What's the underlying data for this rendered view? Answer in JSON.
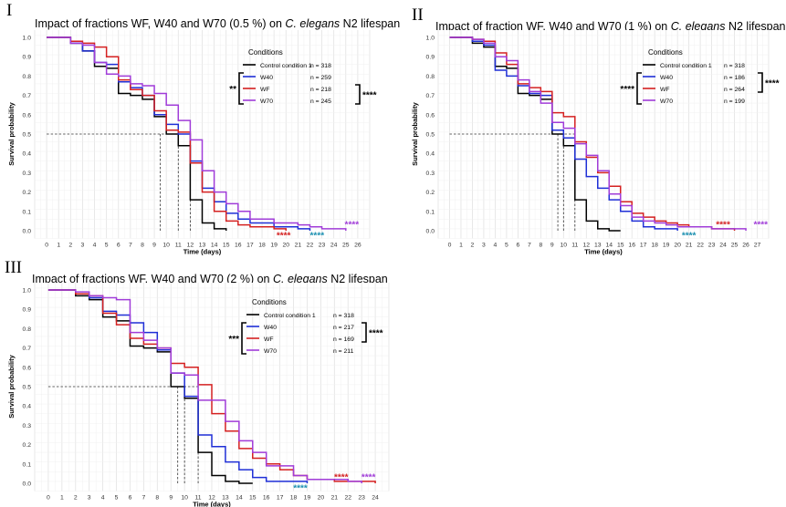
{
  "chart_data": [
    {
      "type": "line",
      "step": true,
      "panel_label": "I",
      "title_parts": [
        "Impact of fractions WF, W40 and W70 (0.5 %) on ",
        "C. elegans",
        " N2 lifespan"
      ],
      "xlabel": "Time (days)",
      "ylabel": "Survival probability",
      "xlim": [
        -1,
        27
      ],
      "ylim": [
        0,
        1
      ],
      "xticks": [
        0,
        1,
        2,
        3,
        4,
        5,
        6,
        7,
        8,
        9,
        10,
        11,
        12,
        13,
        14,
        15,
        16,
        17,
        18,
        19,
        20,
        21,
        22,
        23,
        24,
        25,
        26
      ],
      "yticks": [
        0.0,
        0.1,
        0.2,
        0.3,
        0.4,
        0.5,
        0.6,
        0.7,
        0.8,
        0.9,
        1.0
      ],
      "grid": true,
      "legend_title": "Conditions",
      "legend_position": "top-right",
      "median_line": 0.5,
      "medians": [
        9.5,
        11,
        12
      ],
      "series": [
        {
          "name": "Control condition 1",
          "n": "n = 318",
          "color": "#000000",
          "x": [
            0,
            2,
            3,
            4,
            5,
            6,
            7,
            8,
            9,
            10,
            11,
            12,
            13,
            14,
            15
          ],
          "y": [
            1.0,
            0.97,
            0.93,
            0.85,
            0.84,
            0.71,
            0.7,
            0.68,
            0.59,
            0.5,
            0.44,
            0.16,
            0.04,
            0.01,
            0.0
          ]
        },
        {
          "name": "W40",
          "n": "n = 259",
          "color": "#1f2fd6",
          "x": [
            0,
            2,
            3,
            4,
            5,
            6,
            7,
            8,
            9,
            10,
            11,
            12,
            13,
            14,
            15,
            16,
            17,
            19,
            21,
            22
          ],
          "y": [
            1.0,
            0.97,
            0.93,
            0.87,
            0.86,
            0.77,
            0.74,
            0.7,
            0.6,
            0.55,
            0.5,
            0.36,
            0.22,
            0.15,
            0.09,
            0.06,
            0.04,
            0.02,
            0.01,
            0.0
          ]
        },
        {
          "name": "WF",
          "n": "n = 218",
          "color": "#d42020",
          "x": [
            0,
            2,
            3,
            4,
            5,
            6,
            7,
            8,
            9,
            10,
            11,
            12,
            13,
            14,
            15,
            16,
            17,
            19,
            20
          ],
          "y": [
            1.0,
            0.98,
            0.97,
            0.95,
            0.9,
            0.78,
            0.73,
            0.7,
            0.62,
            0.52,
            0.51,
            0.35,
            0.2,
            0.1,
            0.05,
            0.03,
            0.02,
            0.01,
            0.0
          ]
        },
        {
          "name": "W70",
          "n": "n = 245",
          "color": "#a03cd8",
          "x": [
            0,
            2,
            3,
            4,
            5,
            6,
            7,
            8,
            9,
            10,
            11,
            12,
            13,
            14,
            15,
            16,
            17,
            19,
            21,
            22,
            23,
            24,
            25
          ],
          "y": [
            1.0,
            0.97,
            0.96,
            0.87,
            0.81,
            0.8,
            0.76,
            0.75,
            0.71,
            0.65,
            0.57,
            0.47,
            0.31,
            0.2,
            0.14,
            0.1,
            0.06,
            0.04,
            0.03,
            0.02,
            0.01,
            0.01,
            0.0
          ]
        }
      ],
      "significance": [
        {
          "text": "**",
          "side": "left",
          "from": 1,
          "to": 3
        },
        {
          "text": "****",
          "side": "right",
          "from": 2,
          "to": 3
        }
      ],
      "end_stars": [
        {
          "text": "****",
          "color": "#d42020",
          "x": 19.8,
          "y": -0.025
        },
        {
          "text": "****",
          "color": "#1a8fb0",
          "x": 22.6,
          "y": -0.025
        },
        {
          "text": "****",
          "color": "#a03cd8",
          "x": 25.5,
          "y": 0.03
        }
      ]
    },
    {
      "type": "line",
      "step": true,
      "panel_label": "II",
      "title_parts": [
        "Impact of fraction WF, W40 and W70 (1 %) on ",
        "C. elegans",
        " N2 lifespan"
      ],
      "xlabel": "Time (days)",
      "ylabel": "Survival probability",
      "xlim": [
        -1,
        28
      ],
      "ylim": [
        0,
        1
      ],
      "xticks": [
        0,
        1,
        2,
        3,
        4,
        5,
        6,
        7,
        8,
        9,
        10,
        11,
        12,
        13,
        14,
        15,
        16,
        17,
        18,
        19,
        20,
        21,
        22,
        23,
        24,
        25,
        26,
        27
      ],
      "yticks": [
        0.0,
        0.1,
        0.2,
        0.3,
        0.4,
        0.5,
        0.6,
        0.7,
        0.8,
        0.9,
        1.0
      ],
      "grid": true,
      "legend_title": "Conditions",
      "legend_position": "top-right",
      "median_line": 0.5,
      "medians": [
        9.5,
        10,
        11
      ],
      "series": [
        {
          "name": "Control condition 1",
          "n": "n = 318",
          "color": "#000000",
          "x": [
            0,
            2,
            3,
            4,
            5,
            6,
            7,
            8,
            9,
            10,
            11,
            12,
            13,
            14,
            15
          ],
          "y": [
            1.0,
            0.97,
            0.95,
            0.85,
            0.84,
            0.71,
            0.7,
            0.68,
            0.5,
            0.44,
            0.16,
            0.05,
            0.01,
            0.0,
            0.0
          ]
        },
        {
          "name": "W40",
          "n": "n = 186",
          "color": "#1f2fd6",
          "x": [
            0,
            2,
            3,
            4,
            5,
            6,
            7,
            8,
            9,
            10,
            11,
            12,
            13,
            14,
            15,
            16,
            17,
            18,
            19,
            20
          ],
          "y": [
            1.0,
            0.98,
            0.96,
            0.83,
            0.8,
            0.75,
            0.71,
            0.7,
            0.52,
            0.48,
            0.37,
            0.28,
            0.22,
            0.16,
            0.1,
            0.05,
            0.02,
            0.01,
            0.01,
            0.0
          ]
        },
        {
          "name": "WF",
          "n": "n = 264",
          "color": "#d42020",
          "x": [
            0,
            2,
            3,
            4,
            5,
            6,
            7,
            8,
            9,
            10,
            11,
            12,
            13,
            14,
            15,
            16,
            17,
            18,
            19,
            20,
            21,
            22,
            23,
            24,
            25
          ],
          "y": [
            1.0,
            0.99,
            0.98,
            0.92,
            0.86,
            0.76,
            0.74,
            0.72,
            0.61,
            0.59,
            0.46,
            0.38,
            0.3,
            0.23,
            0.15,
            0.09,
            0.07,
            0.05,
            0.04,
            0.03,
            0.02,
            0.02,
            0.01,
            0.01,
            0.0
          ]
        },
        {
          "name": "W70",
          "n": "n = 199",
          "color": "#a03cd8",
          "x": [
            0,
            2,
            3,
            4,
            5,
            6,
            7,
            8,
            9,
            10,
            11,
            12,
            13,
            14,
            15,
            16,
            17,
            18,
            19,
            20,
            21,
            22,
            23,
            24,
            25,
            26
          ],
          "y": [
            1.0,
            0.99,
            0.97,
            0.9,
            0.88,
            0.78,
            0.72,
            0.66,
            0.56,
            0.53,
            0.45,
            0.39,
            0.31,
            0.19,
            0.13,
            0.07,
            0.05,
            0.04,
            0.03,
            0.02,
            0.02,
            0.02,
            0.01,
            0.01,
            0.01,
            0.0
          ]
        }
      ],
      "significance": [
        {
          "text": "****",
          "side": "left",
          "from": 1,
          "to": 3
        },
        {
          "text": "****",
          "side": "right",
          "from": 1,
          "to": 2
        }
      ],
      "end_stars": [
        {
          "text": "****",
          "color": "#d42020",
          "x": 24.0,
          "y": 0.03
        },
        {
          "text": "****",
          "color": "#1a8fb0",
          "x": 21.0,
          "y": -0.025
        },
        {
          "text": "****",
          "color": "#a03cd8",
          "x": 27.3,
          "y": 0.03
        }
      ]
    },
    {
      "type": "line",
      "step": true,
      "panel_label": "III",
      "title_parts": [
        "Impact of fractions WF, W40 and W70 (2 %) on ",
        "C. elegans",
        " N2 lifespan"
      ],
      "xlabel": "Time (days)",
      "ylabel": "Survival probability",
      "xlim": [
        -1,
        25
      ],
      "ylim": [
        0,
        1
      ],
      "xticks": [
        0,
        1,
        2,
        3,
        4,
        5,
        6,
        7,
        8,
        9,
        10,
        11,
        12,
        13,
        14,
        15,
        16,
        17,
        18,
        19,
        20,
        21,
        22,
        23,
        24
      ],
      "yticks": [
        0.0,
        0.1,
        0.2,
        0.3,
        0.4,
        0.5,
        0.6,
        0.7,
        0.8,
        0.9,
        1.0
      ],
      "grid": true,
      "legend_title": "Conditions",
      "legend_position": "top-right",
      "median_line": 0.5,
      "medians": [
        9.5,
        10,
        11
      ],
      "series": [
        {
          "name": "Control condition 1",
          "n": "n = 318",
          "color": "#000000",
          "x": [
            0,
            2,
            3,
            4,
            5,
            6,
            7,
            8,
            9,
            10,
            11,
            12,
            13,
            14,
            15
          ],
          "y": [
            1.0,
            0.97,
            0.95,
            0.86,
            0.84,
            0.71,
            0.7,
            0.68,
            0.5,
            0.44,
            0.16,
            0.04,
            0.01,
            0.0,
            0.0
          ]
        },
        {
          "name": "W40",
          "n": "n = 217",
          "color": "#1f2fd6",
          "x": [
            0,
            2,
            3,
            4,
            5,
            6,
            7,
            8,
            9,
            10,
            11,
            12,
            13,
            14,
            15,
            16,
            17,
            18,
            19
          ],
          "y": [
            1.0,
            0.98,
            0.96,
            0.89,
            0.87,
            0.83,
            0.78,
            0.69,
            0.57,
            0.45,
            0.25,
            0.19,
            0.11,
            0.07,
            0.03,
            0.01,
            0.01,
            0.01,
            0.0
          ]
        },
        {
          "name": "WF",
          "n": "n = 169",
          "color": "#d42020",
          "x": [
            0,
            2,
            3,
            4,
            5,
            6,
            7,
            8,
            9,
            10,
            11,
            12,
            13,
            14,
            15,
            16,
            17,
            18,
            19,
            20,
            21,
            22,
            23,
            24
          ],
          "y": [
            1.0,
            0.98,
            0.97,
            0.88,
            0.82,
            0.75,
            0.72,
            0.7,
            0.62,
            0.6,
            0.51,
            0.36,
            0.27,
            0.18,
            0.13,
            0.1,
            0.07,
            0.04,
            0.02,
            0.02,
            0.01,
            0.01,
            0.01,
            0.0
          ]
        },
        {
          "name": "W70",
          "n": "n = 211",
          "color": "#a03cd8",
          "x": [
            0,
            2,
            3,
            4,
            5,
            6,
            7,
            8,
            9,
            10,
            11,
            12,
            13,
            14,
            15,
            16,
            17,
            18,
            19,
            20,
            21,
            22,
            23
          ],
          "y": [
            1.0,
            0.99,
            0.97,
            0.96,
            0.95,
            0.78,
            0.74,
            0.7,
            0.57,
            0.56,
            0.43,
            0.43,
            0.32,
            0.22,
            0.16,
            0.09,
            0.09,
            0.04,
            0.02,
            0.02,
            0.02,
            0.01,
            0.0
          ]
        }
      ],
      "significance": [
        {
          "text": "***",
          "side": "left",
          "from": 1,
          "to": 3
        },
        {
          "text": "****",
          "side": "right",
          "from": 1,
          "to": 2
        }
      ],
      "end_stars": [
        {
          "text": "****",
          "color": "#d42020",
          "x": 21.5,
          "y": 0.03
        },
        {
          "text": "****",
          "color": "#1a8fb0",
          "x": 18.5,
          "y": -0.025
        },
        {
          "text": "****",
          "color": "#a03cd8",
          "x": 23.5,
          "y": 0.03
        }
      ]
    }
  ]
}
